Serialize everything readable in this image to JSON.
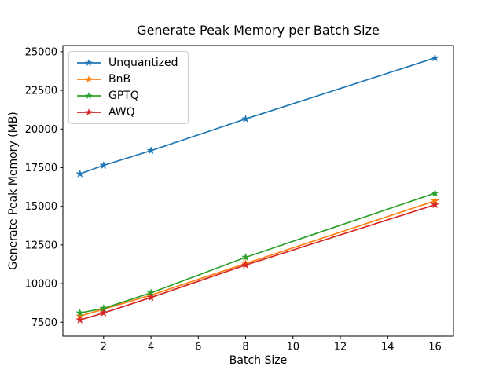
{
  "chart_data": {
    "type": "line",
    "title": "Generate Peak Memory per Batch Size",
    "xlabel": "Batch Size",
    "ylabel": "Generate Peak Memory (MB)",
    "x": [
      1,
      2,
      4,
      8,
      16
    ],
    "series": [
      {
        "name": "Unquantized",
        "color": "#1f77b4",
        "values": [
          17100,
          17650,
          18600,
          20650,
          24600
        ]
      },
      {
        "name": "BnB",
        "color": "#ff7f0e",
        "values": [
          7900,
          8350,
          9250,
          11300,
          15350
        ]
      },
      {
        "name": "GPTQ",
        "color": "#2ca02c",
        "values": [
          8100,
          8400,
          9400,
          11700,
          15850
        ]
      },
      {
        "name": "AWQ",
        "color": "#d62728",
        "values": [
          7650,
          8100,
          9100,
          11200,
          15100
        ]
      }
    ],
    "xticks": [
      2,
      4,
      6,
      8,
      10,
      12,
      14,
      16
    ],
    "yticks": [
      7500,
      10000,
      12500,
      15000,
      17500,
      20000,
      22500,
      25000
    ],
    "xlim": [
      0.28,
      16.78
    ],
    "ylim": [
      6600,
      25400
    ],
    "grid": false,
    "marker": "star",
    "legend_position": "upper-left",
    "background_color": "#ffffff",
    "spine_color": "#000000",
    "tick_label_color": "#000000"
  }
}
